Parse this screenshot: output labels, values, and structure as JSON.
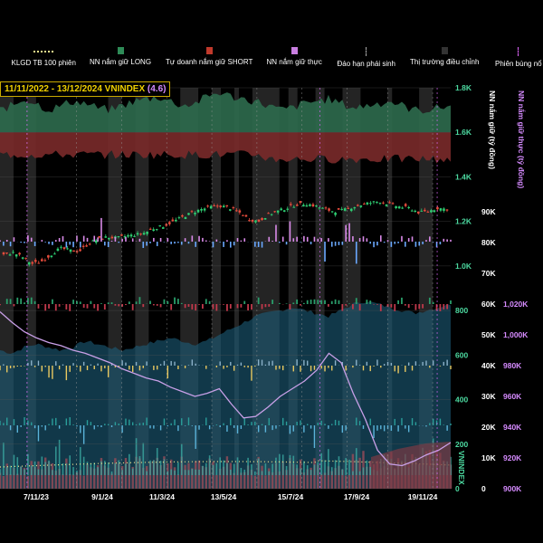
{
  "legend": [
    {
      "label": "KLGD TB 100 phiên",
      "icon": "dotted-line",
      "color": "#f0e68c"
    },
    {
      "label": "NN nắm giữ LONG",
      "icon": "square",
      "color": "#2e8b57"
    },
    {
      "label": "Tự doanh nắm giữ SHORT",
      "icon": "square",
      "color": "#c0392b"
    },
    {
      "label": "NN nắm giữ thực",
      "icon": "square",
      "color": "#c87ee0"
    },
    {
      "label": "Đáo hạn phái sinh",
      "icon": "dotted-vline",
      "color": "#aaaaaa"
    },
    {
      "label": "Thị trường điều chỉnh",
      "icon": "square",
      "color": "#333333"
    },
    {
      "label": "Phiên bùng nổ",
      "icon": "dotted-vline",
      "color": "#e066ff"
    }
  ],
  "header": {
    "date_range": "11/11/2022 - 13/12/2024",
    "index": "VNINDEX",
    "change": "(4.6)"
  },
  "chart_data": {
    "type": "candlestick-composite",
    "title": "11/11/2022 - 13/12/2024 VNINDEX (4.6)",
    "x_ticks": [
      "7/11/23",
      "9/1/24",
      "11/3/24",
      "13/5/24",
      "15/7/24",
      "17/9/24",
      "19/11/24"
    ],
    "vnindex_axis": {
      "ticks": [
        "1.8K",
        "1.6K",
        "1.4K",
        "1.2K",
        "1.0K",
        "800",
        "600",
        "400",
        "200",
        "0"
      ],
      "label": "VNINDEX",
      "color": "#4cd9a0"
    },
    "nn_axis": {
      "ticks": [
        "90K",
        "80K",
        "70K",
        "60K",
        "50K",
        "40K",
        "30K",
        "20K",
        "10K",
        "0"
      ],
      "label": "NN nắm giữ (tỷ đồng)",
      "color": "#ffffff"
    },
    "net_axis": {
      "ticks": [
        "1,020K",
        "1,000K",
        "980K",
        "960K",
        "940K",
        "920K",
        "900K"
      ],
      "label": "NN nắm giữ thực (tỷ đồng)",
      "color": "#d68bff"
    },
    "vnindex_close": [
      1050,
      1060,
      1040,
      1010,
      1020,
      1050,
      1080,
      1070,
      1065,
      1100,
      1120,
      1130,
      1125,
      1135,
      1140,
      1150,
      1170,
      1180,
      1200,
      1220,
      1240,
      1255,
      1265,
      1270,
      1260,
      1240,
      1210,
      1200,
      1230,
      1245,
      1260,
      1275,
      1280,
      1270,
      1255,
      1245,
      1250,
      1265,
      1275,
      1285,
      1290,
      1275,
      1265,
      1260,
      1240,
      1245,
      1260,
      1255
    ],
    "net_holding": [
      1015,
      1008,
      1002,
      998,
      995,
      993,
      990,
      988,
      985,
      982,
      978,
      975,
      972,
      970,
      966,
      963,
      960,
      962,
      965,
      955,
      946,
      947,
      953,
      960,
      965,
      970,
      977,
      988,
      982,
      962,
      945,
      925,
      916,
      915,
      918,
      922,
      925,
      930
    ],
    "nn_long_upper": [
      1.7,
      1.72,
      1.75,
      1.73,
      1.7,
      1.72,
      1.74,
      1.73,
      1.71,
      1.7,
      1.72,
      1.74,
      1.75,
      1.76,
      1.74,
      1.72,
      1.73,
      1.76,
      1.78,
      1.76,
      1.75,
      1.74,
      1.72,
      1.7,
      1.71,
      1.73,
      1.74,
      1.75,
      1.73,
      1.71,
      1.72,
      1.73,
      1.74,
      1.72,
      1.7,
      1.7,
      1.71,
      1.72
    ],
    "foreign_holding_k": [
      45,
      44,
      46,
      47,
      46,
      45,
      46,
      48,
      47,
      46,
      45,
      46,
      47,
      48,
      49,
      48,
      47,
      48,
      50,
      52,
      54,
      56,
      57,
      58,
      59,
      58,
      57,
      56,
      58,
      60,
      61,
      60,
      59,
      58,
      57,
      58,
      59,
      60
    ],
    "correction_zones": [
      [
        0.0,
        0.03
      ],
      [
        0.06,
        0.08
      ],
      [
        0.24,
        0.27
      ],
      [
        0.3,
        0.33
      ],
      [
        0.4,
        0.44
      ],
      [
        0.47,
        0.49
      ],
      [
        0.52,
        0.53
      ],
      [
        0.56,
        0.62
      ],
      [
        0.64,
        0.66
      ],
      [
        0.7,
        0.72
      ],
      [
        0.76,
        0.8
      ],
      [
        0.86,
        0.87
      ],
      [
        0.93,
        0.96
      ]
    ]
  }
}
